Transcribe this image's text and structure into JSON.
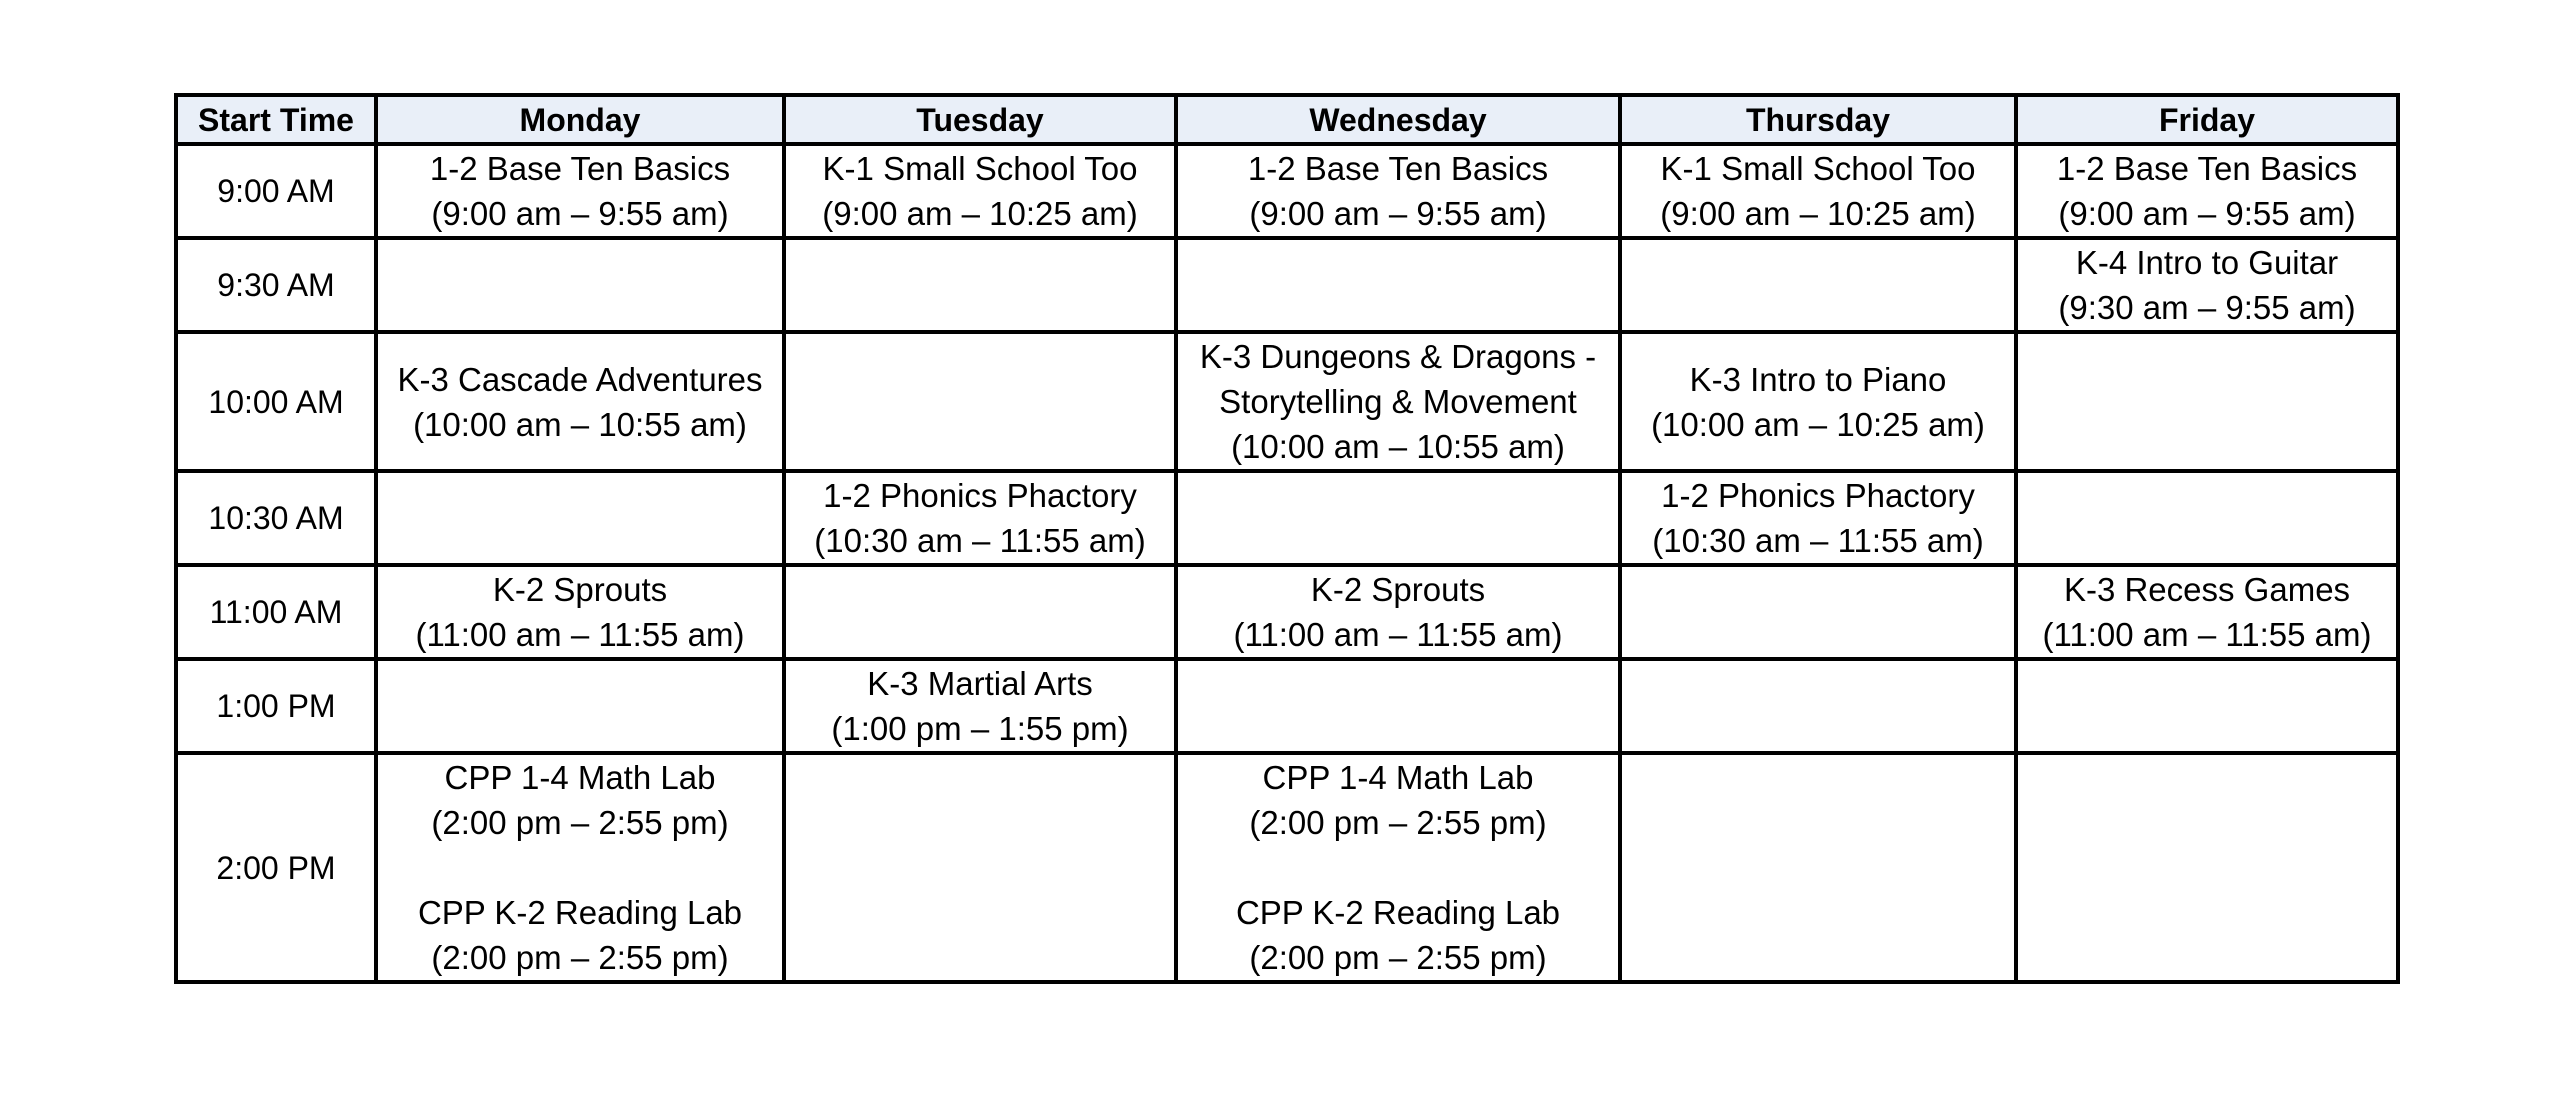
{
  "page": {
    "background_color": "#ffffff"
  },
  "schedule": {
    "header_bg": "#e9eff8",
    "border_color": "#000000",
    "text_color": "#000000",
    "columns": [
      "Start Time",
      "Monday",
      "Tuesday",
      "Wednesday",
      "Thursday",
      "Friday"
    ],
    "rows": [
      {
        "time": "9:00 AM",
        "cells": [
          [
            "1-2 Base Ten Basics\n(9:00 am – 9:55 am)"
          ],
          [
            "K-1 Small School Too\n(9:00 am – 10:25 am)"
          ],
          [
            "1-2 Base Ten Basics\n(9:00 am – 9:55 am)"
          ],
          [
            "K-1 Small School Too\n(9:00 am – 10:25 am)"
          ],
          [
            "1-2 Base Ten Basics\n(9:00 am – 9:55 am)"
          ]
        ]
      },
      {
        "time": "9:30 AM",
        "cells": [
          [],
          [],
          [],
          [],
          [
            "K-4 Intro to Guitar\n(9:30 am – 9:55 am)"
          ]
        ]
      },
      {
        "time": "10:00 AM",
        "cells": [
          [
            "K-3 Cascade Adventures\n(10:00 am – 10:55 am)"
          ],
          [],
          [
            "K-3 Dungeons & Dragons -\nStorytelling & Movement\n(10:00 am – 10:55 am)"
          ],
          [
            "K-3 Intro to Piano\n(10:00 am – 10:25 am)"
          ],
          []
        ]
      },
      {
        "time": "10:30 AM",
        "cells": [
          [],
          [
            "1-2 Phonics Phactory\n(10:30 am – 11:55 am)"
          ],
          [],
          [
            "1-2 Phonics Phactory\n(10:30 am – 11:55 am)"
          ],
          []
        ]
      },
      {
        "time": "11:00 AM",
        "cells": [
          [
            "K-2 Sprouts\n(11:00 am – 11:55 am)"
          ],
          [],
          [
            "K-2 Sprouts\n(11:00 am – 11:55 am)"
          ],
          [],
          [
            "K-3 Recess Games\n(11:00 am – 11:55 am)"
          ]
        ]
      },
      {
        "time": "1:00 PM",
        "cells": [
          [],
          [
            "K-3 Martial Arts\n(1:00 pm – 1:55 pm)"
          ],
          [],
          [],
          []
        ]
      },
      {
        "time": "2:00 PM",
        "cells": [
          [
            "CPP 1-4 Math Lab\n(2:00 pm – 2:55 pm)",
            "CPP K-2 Reading Lab\n(2:00 pm – 2:55 pm)"
          ],
          [],
          [
            "CPP 1-4 Math Lab\n(2:00 pm – 2:55 pm)",
            "CPP K-2 Reading Lab\n(2:00 pm – 2:55 pm)"
          ],
          [],
          []
        ]
      }
    ]
  }
}
